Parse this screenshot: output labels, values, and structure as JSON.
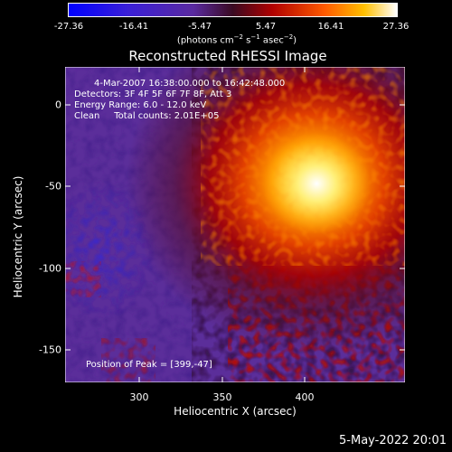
{
  "colorbar": {
    "ticks": [
      "-27.36",
      "-16.41",
      "-5.47",
      "5.47",
      "16.41",
      "27.36"
    ],
    "units_prefix": "(photons cm",
    "units_exp1": "−2",
    "units_mid": " s",
    "units_exp2": "−1",
    "units_suffix": " asec",
    "units_exp3": "−2",
    "units_close": ")"
  },
  "title": "Reconstructed RHESSI Image",
  "axes": {
    "xlabel": "Heliocentric X (arcsec)",
    "ylabel": "Heliocentric Y (arcsec)",
    "xticks": [
      "300",
      "350",
      "400"
    ],
    "yticks": [
      "0",
      "-50",
      "-100",
      "-150"
    ]
  },
  "annotations": {
    "time_range": "4-Mar-2007 16:38:00.000 to 16:42:48.000",
    "detectors": "Detectors: 3F 4F 5F 6F 7F 8F, Att 3",
    "energy_range": "Energy Range: 6.0 - 12.0 keV",
    "method": "Clean     Total counts: 2.01E+05",
    "peak": "Position of Peak = [399,-47]"
  },
  "footer": {
    "timestamp": "5-May-2022 20:01"
  },
  "image": {
    "colormap": "red-temperature",
    "peak_position": [
      399,
      -47
    ],
    "x_range": [
      262,
      448
    ],
    "y_range": [
      -172,
      20
    ]
  }
}
